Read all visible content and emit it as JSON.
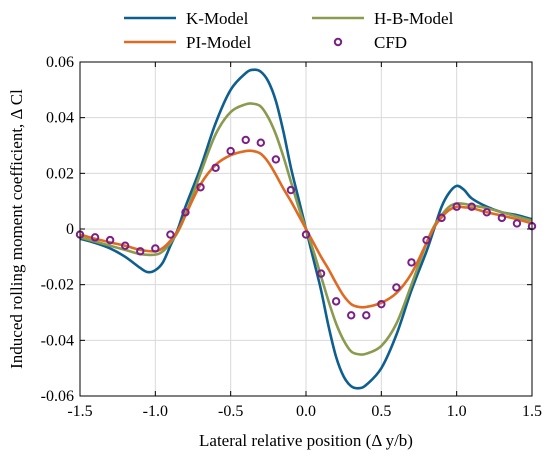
{
  "chart_data": {
    "type": "line",
    "title": "",
    "xlabel": "Lateral relative position (Δ y/b)",
    "ylabel": "Induced rolling moment coefficient, Δ Cl",
    "xlim": [
      -1.5,
      1.5
    ],
    "ylim": [
      -0.06,
      0.06
    ],
    "grid": true,
    "legend_position": "top",
    "x_ticks": [
      -1.5,
      -1.0,
      -0.5,
      0.0,
      0.5,
      1.0,
      1.5
    ],
    "x_tick_labels": [
      "-1.5",
      "-1.0",
      "-0.5",
      "0.0",
      "0.5",
      "1.0",
      "1.5"
    ],
    "y_ticks": [
      -0.06,
      -0.04,
      -0.02,
      0,
      0.02,
      0.04,
      0.06
    ],
    "y_tick_labels": [
      "-0.06",
      "-0.04",
      "-0.02",
      "0",
      "0.02",
      "0.04",
      "0.06"
    ],
    "series": [
      {
        "name": "K-Model",
        "kind": "line",
        "color": "#0e5f8f",
        "x": [
          -1.5,
          -1.4,
          -1.3,
          -1.2,
          -1.1,
          -1.05,
          -1.0,
          -0.95,
          -0.9,
          -0.85,
          -0.8,
          -0.7,
          -0.6,
          -0.5,
          -0.4,
          -0.35,
          -0.3,
          -0.25,
          -0.2,
          -0.15,
          -0.1,
          -0.05,
          0.0,
          0.05,
          0.1,
          0.15,
          0.2,
          0.25,
          0.3,
          0.35,
          0.4,
          0.5,
          0.6,
          0.7,
          0.8,
          0.85,
          0.9,
          0.95,
          1.0,
          1.05,
          1.1,
          1.2,
          1.3,
          1.4,
          1.5
        ],
        "y": [
          -0.0035,
          -0.005,
          -0.007,
          -0.01,
          -0.014,
          -0.0155,
          -0.0148,
          -0.012,
          -0.006,
          0.0,
          0.008,
          0.022,
          0.038,
          0.05,
          0.056,
          0.0572,
          0.0565,
          0.053,
          0.046,
          0.035,
          0.022,
          0.011,
          0.0,
          -0.011,
          -0.022,
          -0.035,
          -0.046,
          -0.053,
          -0.0565,
          -0.0572,
          -0.056,
          -0.05,
          -0.038,
          -0.022,
          -0.008,
          0.0,
          0.008,
          0.013,
          0.0155,
          0.014,
          0.011,
          0.008,
          0.006,
          0.005,
          0.0035
        ]
      },
      {
        "name": "H-B-Model",
        "kind": "line",
        "color": "#8a9a4e",
        "x": [
          -1.5,
          -1.4,
          -1.3,
          -1.2,
          -1.1,
          -1.0,
          -0.95,
          -0.9,
          -0.85,
          -0.8,
          -0.7,
          -0.6,
          -0.5,
          -0.4,
          -0.35,
          -0.3,
          -0.25,
          -0.2,
          -0.15,
          -0.1,
          -0.05,
          0.0,
          0.05,
          0.1,
          0.15,
          0.2,
          0.25,
          0.3,
          0.35,
          0.4,
          0.5,
          0.6,
          0.7,
          0.8,
          0.85,
          0.9,
          0.95,
          1.0,
          1.05,
          1.1,
          1.2,
          1.3,
          1.4,
          1.5
        ],
        "y": [
          -0.003,
          -0.0045,
          -0.006,
          -0.0075,
          -0.009,
          -0.0092,
          -0.008,
          -0.005,
          -0.001,
          0.005,
          0.02,
          0.034,
          0.042,
          0.0448,
          0.045,
          0.044,
          0.04,
          0.034,
          0.026,
          0.017,
          0.008,
          0.0,
          -0.008,
          -0.017,
          -0.026,
          -0.034,
          -0.04,
          -0.044,
          -0.045,
          -0.0448,
          -0.042,
          -0.034,
          -0.02,
          -0.005,
          0.001,
          0.005,
          0.008,
          0.0092,
          0.009,
          0.0085,
          0.0075,
          0.006,
          0.0045,
          0.003
        ]
      },
      {
        "name": "PI-Model",
        "kind": "line",
        "color": "#e06a22",
        "x": [
          -1.5,
          -1.4,
          -1.3,
          -1.2,
          -1.1,
          -1.0,
          -0.95,
          -0.9,
          -0.85,
          -0.8,
          -0.7,
          -0.6,
          -0.5,
          -0.4,
          -0.35,
          -0.3,
          -0.25,
          -0.2,
          -0.15,
          -0.1,
          -0.05,
          0.0,
          0.05,
          0.1,
          0.15,
          0.2,
          0.25,
          0.3,
          0.35,
          0.4,
          0.5,
          0.6,
          0.7,
          0.8,
          0.85,
          0.9,
          0.95,
          1.0,
          1.05,
          1.1,
          1.2,
          1.3,
          1.4,
          1.5
        ],
        "y": [
          -0.002,
          -0.0035,
          -0.0048,
          -0.006,
          -0.0075,
          -0.008,
          -0.0068,
          -0.0042,
          -0.0005,
          0.005,
          0.016,
          0.023,
          0.0265,
          0.028,
          0.028,
          0.027,
          0.024,
          0.0195,
          0.0145,
          0.01,
          0.005,
          0.0,
          -0.005,
          -0.01,
          -0.0145,
          -0.0195,
          -0.024,
          -0.027,
          -0.028,
          -0.028,
          -0.0265,
          -0.023,
          -0.016,
          -0.005,
          0.0005,
          0.0042,
          0.0068,
          0.008,
          0.0078,
          0.0075,
          0.006,
          0.0048,
          0.0035,
          0.002
        ]
      },
      {
        "name": "CFD",
        "kind": "scatter",
        "color": "#7a1f86",
        "x": [
          -1.5,
          -1.4,
          -1.3,
          -1.2,
          -1.1,
          -1.0,
          -0.9,
          -0.8,
          -0.7,
          -0.6,
          -0.5,
          -0.4,
          -0.3,
          -0.2,
          -0.1,
          0.0,
          0.1,
          0.2,
          0.3,
          0.4,
          0.5,
          0.6,
          0.7,
          0.8,
          0.9,
          1.0,
          1.1,
          1.2,
          1.3,
          1.4,
          1.5
        ],
        "y": [
          -0.002,
          -0.003,
          -0.004,
          -0.006,
          -0.008,
          -0.007,
          -0.002,
          0.006,
          0.015,
          0.022,
          0.028,
          0.032,
          0.031,
          0.025,
          0.014,
          -0.002,
          -0.016,
          -0.026,
          -0.031,
          -0.031,
          -0.027,
          -0.021,
          -0.012,
          -0.004,
          0.004,
          0.008,
          0.008,
          0.006,
          0.004,
          0.002,
          0.001
        ]
      }
    ]
  }
}
